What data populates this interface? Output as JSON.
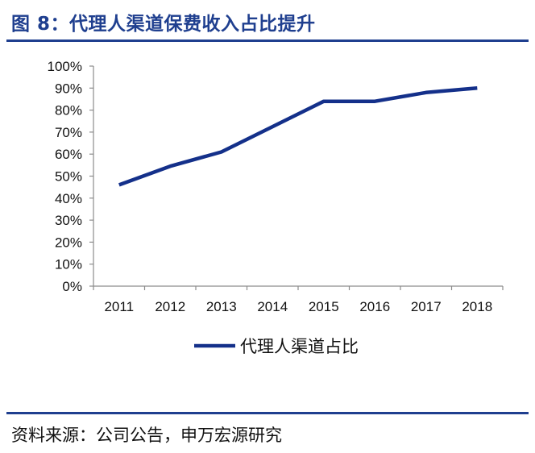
{
  "header": {
    "title": "图 8：代理人渠道保费收入占比提升"
  },
  "footer": {
    "source": "资料来源：公司公告，申万宏源研究"
  },
  "colors": {
    "accent": "#1f3f8f",
    "series": "#14308a",
    "axis": "#8c8c8c"
  },
  "chart_data": {
    "type": "line",
    "title": "图 8：代理人渠道保费收入占比提升",
    "xlabel": "",
    "ylabel": "",
    "categories": [
      "2011",
      "2012",
      "2013",
      "2014",
      "2015",
      "2016",
      "2017",
      "2018"
    ],
    "series": [
      {
        "name": "代理人渠道占比",
        "values": [
          46,
          54.5,
          61,
          72.5,
          84,
          84,
          88,
          90
        ]
      }
    ],
    "ylim": [
      0,
      100
    ],
    "yticks": [
      "0%",
      "10%",
      "20%",
      "30%",
      "40%",
      "50%",
      "60%",
      "70%",
      "80%",
      "90%",
      "100%"
    ],
    "grid": false,
    "legend": "bottom-center"
  }
}
